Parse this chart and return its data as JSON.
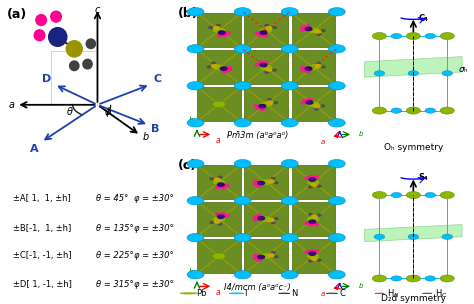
{
  "fig_width": 4.74,
  "fig_height": 3.04,
  "dpi": 100,
  "panel_a_label": "(a)",
  "panel_b_label": "(b)",
  "panel_c_label": "(c)",
  "table_rows": [
    [
      "±A[ 1,  1, ±h]",
      "θ = 45°",
      "φ = ±30°"
    ],
    [
      "±B[-1,  1, ±h]",
      "θ = 135°",
      "φ = ±30°"
    ],
    [
      "±C[-1, -1, ±h]",
      "θ = 225°",
      "φ = ±30°"
    ],
    [
      "±D[ 1, -1, ±h]",
      "θ = 315°",
      "φ = ±30°"
    ]
  ],
  "Pm3m_label": "Pm͆3m (a⁰a⁰a⁰)",
  "I4mcm_label": "I4/mcm (a⁰a⁰c⁻)",
  "Oh_label": "Oₕ symmetry",
  "D4d_label": "D₂d symmetry",
  "sigma_h": "σₕ",
  "S4_label": "S₄",
  "C4_label": "C₄",
  "colors": {
    "Pb": "#8DB600",
    "I": "#00BFFF",
    "N": "#3D007A",
    "C": "#C8A800",
    "H_N": "#FF1493",
    "H_C": "#505050",
    "arrow_blue": "#1E40AF",
    "oct_green": "#6B8E23",
    "oct_edge": "#5A7A1A",
    "oct_line": "#C8A800",
    "bg_white": "#FFFFFF",
    "green_plane": "#90EE90",
    "red_bond": "#FF0000",
    "axis_black": "#000000"
  }
}
